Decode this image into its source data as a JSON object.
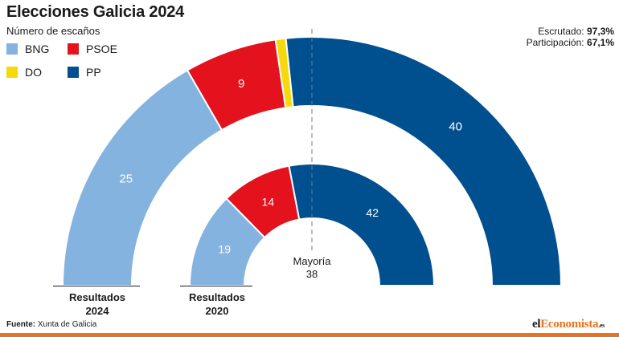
{
  "header": {
    "title": "Elecciones Galicia 2024",
    "subtitle": "Número de escaños"
  },
  "legend": [
    {
      "label": "BNG",
      "color": "#84b3df"
    },
    {
      "label": "PSOE",
      "color": "#e3121d"
    },
    {
      "label": "DO",
      "color": "#f6d90a"
    },
    {
      "label": "PP",
      "color": "#00508f"
    }
  ],
  "stats": {
    "scrutinized_label": "Escrutado:",
    "scrutinized_value": "97,3%",
    "participation_label": "Participación:",
    "participation_value": "67,1%"
  },
  "chart_data": {
    "type": "semicircle",
    "rings": [
      {
        "label_line1": "Resultados",
        "label_line2": "2024",
        "total": 75,
        "slices": [
          {
            "party": "BNG",
            "seats": 25,
            "color": "#84b3df",
            "label": "25"
          },
          {
            "party": "PSOE",
            "seats": 9,
            "color": "#e3121d",
            "label": "9"
          },
          {
            "party": "DO",
            "seats": 1,
            "color": "#f6d90a",
            "label": ""
          },
          {
            "party": "PP",
            "seats": 40,
            "color": "#00508f",
            "label": "40"
          }
        ]
      },
      {
        "label_line1": "Resultados",
        "label_line2": "2020",
        "total": 75,
        "slices": [
          {
            "party": "BNG",
            "seats": 19,
            "color": "#84b3df",
            "label": "19"
          },
          {
            "party": "PSOE",
            "seats": 14,
            "color": "#e3121d",
            "label": "14"
          },
          {
            "party": "PP",
            "seats": 42,
            "color": "#00508f",
            "label": "42"
          }
        ]
      }
    ],
    "majority": {
      "label": "Mayoría",
      "value": "38"
    }
  },
  "footer": {
    "source_label": "Fuente:",
    "source_value": "Xunta de Galicia",
    "brand_prefix": "el",
    "brand_accent": "Economista",
    "brand_tld": ".es"
  }
}
